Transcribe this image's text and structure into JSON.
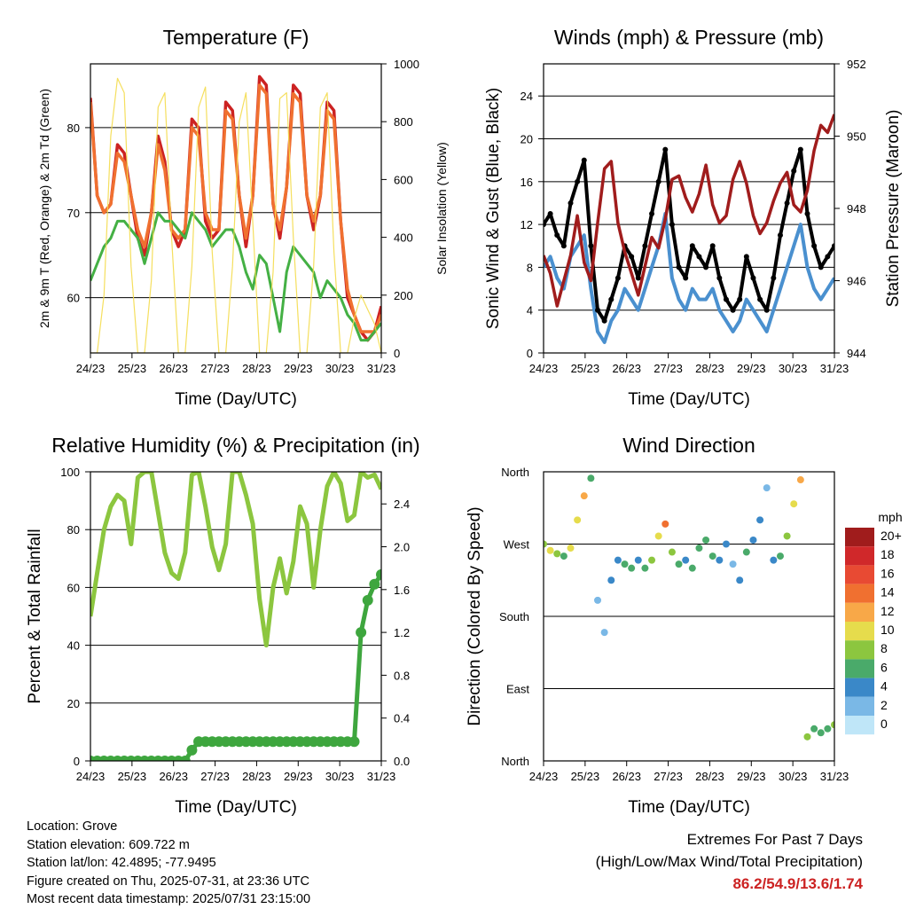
{
  "chart_data": [
    {
      "type": "line",
      "title": "Temperature (F)",
      "xlabel": "Time (Day/UTC)",
      "ylabel": "2m & 9m T (Red, Orange) & 2m Td (Green)",
      "ylabel_right": "Solar Insolation (Yellow)",
      "x_ticks": [
        "24/23",
        "25/23",
        "26/23",
        "27/23",
        "28/23",
        "29/23",
        "30/23",
        "31/23"
      ],
      "y_ticks": [
        60,
        70,
        80
      ],
      "y_right_ticks": [
        0,
        200,
        400,
        600,
        800,
        1000
      ],
      "ylim": [
        53.5,
        87.5
      ],
      "ylim_right": [
        0,
        1000
      ],
      "series": [
        {
          "name": "2m T",
          "color": "#cc2222",
          "values": [
            83.5,
            72,
            70,
            71,
            78,
            77,
            72,
            67,
            65,
            70,
            79,
            76,
            68,
            66,
            68,
            81,
            80,
            69,
            67,
            68,
            83,
            82,
            72,
            66,
            72,
            86,
            85,
            71,
            67,
            73,
            85,
            84,
            72,
            68,
            72,
            83,
            82,
            69,
            60,
            58,
            56,
            55,
            56,
            59
          ]
        },
        {
          "name": "9m T",
          "color": "#f07030",
          "values": [
            83,
            72,
            70,
            71,
            77,
            76,
            72,
            68,
            66,
            70,
            78,
            75,
            68,
            67,
            68,
            80,
            79,
            70,
            68,
            68,
            82,
            81,
            72,
            67,
            72,
            85,
            84,
            71,
            68,
            73,
            84,
            83,
            72,
            69,
            72,
            82,
            81,
            69,
            61,
            58,
            56,
            56,
            56,
            58
          ]
        },
        {
          "name": "2m Td",
          "color": "#44b044",
          "values": [
            62,
            64,
            66,
            67,
            69,
            69,
            68,
            67,
            64,
            67,
            70,
            69,
            69,
            68,
            67,
            70,
            69,
            68,
            66,
            67,
            68,
            68,
            66,
            63,
            61,
            65,
            64,
            60,
            56,
            63,
            66,
            65,
            64,
            63,
            60,
            62,
            61,
            60,
            58,
            57,
            55,
            55,
            56,
            57
          ]
        },
        {
          "name": "Solar Insolation",
          "color": "#f4dc4c",
          "values": [
            0,
            0,
            200,
            750,
            950,
            900,
            300,
            0,
            0,
            250,
            850,
            900,
            400,
            0,
            0,
            300,
            850,
            920,
            350,
            0,
            0,
            300,
            800,
            900,
            450,
            0,
            0,
            280,
            880,
            900,
            400,
            0,
            0,
            300,
            850,
            900,
            350,
            0,
            0,
            120,
            200,
            150,
            100,
            0
          ]
        }
      ]
    },
    {
      "type": "line",
      "title": "Winds (mph) & Pressure (mb)",
      "xlabel": "Time (Day/UTC)",
      "ylabel": "Sonic Wind & Gust (Blue, Black)",
      "ylabel_right": "Station Pressure (Maroon)",
      "x_ticks": [
        "24/23",
        "25/23",
        "26/23",
        "27/23",
        "28/23",
        "29/23",
        "30/23",
        "31/23"
      ],
      "y_ticks": [
        0,
        4,
        8,
        12,
        16,
        20,
        24
      ],
      "y_right_ticks": [
        944,
        946,
        948,
        950,
        952
      ],
      "ylim": [
        0,
        27
      ],
      "ylim_right": [
        944,
        952
      ],
      "series": [
        {
          "name": "Wind",
          "color": "#4a90cf",
          "values": [
            8,
            9,
            7,
            6,
            9,
            10,
            11,
            6,
            2,
            1,
            3,
            4,
            6,
            5,
            4,
            6,
            8,
            10,
            13,
            7,
            5,
            4,
            6,
            5,
            5,
            6,
            4,
            3,
            2,
            3,
            5,
            4,
            3,
            2,
            4,
            6,
            8,
            10,
            12,
            8,
            6,
            5,
            6,
            7
          ]
        },
        {
          "name": "Gust",
          "color": "#000000",
          "values": [
            12,
            13,
            11,
            10,
            14,
            16,
            18,
            10,
            4,
            3,
            5,
            7,
            10,
            9,
            7,
            10,
            13,
            16,
            19,
            12,
            8,
            7,
            10,
            9,
            8,
            10,
            7,
            5,
            4,
            5,
            9,
            7,
            5,
            4,
            7,
            11,
            14,
            17,
            19,
            13,
            10,
            8,
            9,
            10
          ]
        },
        {
          "name": "Pressure",
          "color": "#a01c1c",
          "values": [
            946.7,
            946.2,
            945.3,
            946.0,
            946.7,
            947.8,
            946.5,
            946.0,
            947.6,
            949.1,
            949.3,
            947.6,
            946.8,
            946.2,
            945.6,
            946.4,
            947.2,
            946.9,
            947.7,
            948.8,
            948.9,
            948.3,
            947.9,
            948.4,
            949.2,
            948.1,
            947.6,
            947.8,
            948.8,
            949.3,
            948.7,
            947.8,
            947.3,
            947.6,
            948.2,
            948.7,
            949.0,
            948.1,
            947.9,
            948.5,
            949.6,
            950.3,
            950.1,
            950.6
          ]
        }
      ]
    },
    {
      "type": "line",
      "title": "Relative Humidity (%) & Precipitation (in)",
      "xlabel": "Time (Day/UTC)",
      "ylabel": "Percent & Total Rainfall",
      "x_ticks": [
        "24/23",
        "25/23",
        "26/23",
        "27/23",
        "28/23",
        "29/23",
        "30/23",
        "31/23"
      ],
      "y_ticks": [
        0,
        20,
        40,
        60,
        80,
        100
      ],
      "y_right_ticks": [
        "0.0",
        "0.4",
        "0.8",
        "1.2",
        "1.6",
        "2.0",
        "2.4"
      ],
      "ylim": [
        0,
        100
      ],
      "ylim_right": [
        0,
        2.7
      ],
      "series": [
        {
          "name": "Relative Humidity",
          "color": "#8cc63f",
          "values": [
            50,
            65,
            80,
            88,
            92,
            90,
            75,
            98,
            100,
            100,
            86,
            72,
            65,
            63,
            72,
            99,
            100,
            88,
            74,
            66,
            75,
            100,
            100,
            92,
            82,
            56,
            40,
            60,
            70,
            58,
            69,
            88,
            82,
            60,
            80,
            95,
            100,
            96,
            83,
            85,
            100,
            98,
            99,
            94
          ]
        },
        {
          "name": "Total Precipitation",
          "color": "#3ea63e",
          "values": [
            0,
            0,
            0,
            0,
            0,
            0,
            0,
            0,
            0,
            0,
            0,
            0,
            0,
            0,
            0,
            0.1,
            0.18,
            0.18,
            0.18,
            0.18,
            0.18,
            0.18,
            0.18,
            0.18,
            0.18,
            0.18,
            0.18,
            0.18,
            0.18,
            0.18,
            0.18,
            0.18,
            0.18,
            0.18,
            0.18,
            0.18,
            0.18,
            0.18,
            0.18,
            0.18,
            1.2,
            1.5,
            1.65,
            1.74
          ]
        }
      ]
    },
    {
      "type": "scatter",
      "title": "Wind Direction",
      "xlabel": "Time (Day/UTC)",
      "ylabel": "Direction (Colored By Speed)",
      "x_ticks": [
        "24/23",
        "25/23",
        "26/23",
        "27/23",
        "28/23",
        "29/23",
        "30/23",
        "31/23"
      ],
      "y_ticks": [
        "North",
        "East",
        "South",
        "West",
        "North"
      ],
      "ylim": [
        0,
        360
      ],
      "series": [
        {
          "name": "Direction",
          "values": [
            270,
            262,
            258,
            255,
            265,
            300,
            330,
            352,
            200,
            160,
            225,
            250,
            245,
            240,
            250,
            240,
            250,
            280,
            295,
            260,
            245,
            250,
            240,
            265,
            275,
            255,
            250,
            270,
            245,
            225,
            260,
            275,
            300,
            340,
            250,
            255,
            280,
            320,
            350,
            30,
            40,
            35,
            40,
            45
          ]
        }
      ],
      "legend": {
        "title": "mph",
        "labels": [
          "20+",
          "18",
          "16",
          "14",
          "12",
          "10",
          "8",
          "6",
          "4",
          "2",
          "0"
        ],
        "colors": [
          "#a01c1c",
          "#d0282a",
          "#e84a33",
          "#f07030",
          "#f8a848",
          "#e6dc4c",
          "#8cc63f",
          "#4aaa6a",
          "#3a88c8",
          "#7ab8e6",
          "#bfe6f8"
        ]
      }
    }
  ],
  "station": {
    "location": "Location: Grove",
    "elevation": "Station elevation: 609.722 m",
    "latlon": "Station lat/lon: 42.4895; -77.9495",
    "created": "Figure created on Thu, 2025-07-31, at 23:36 UTC",
    "timestamp": "Most recent data timestamp: 2025/07/31 23:15:00"
  },
  "extremes": {
    "line1": "Extremes For Past 7 Days",
    "line2": "(High/Low/Max Wind/Total Precipitation)",
    "values": "86.2/54.9/13.6/1.74"
  }
}
